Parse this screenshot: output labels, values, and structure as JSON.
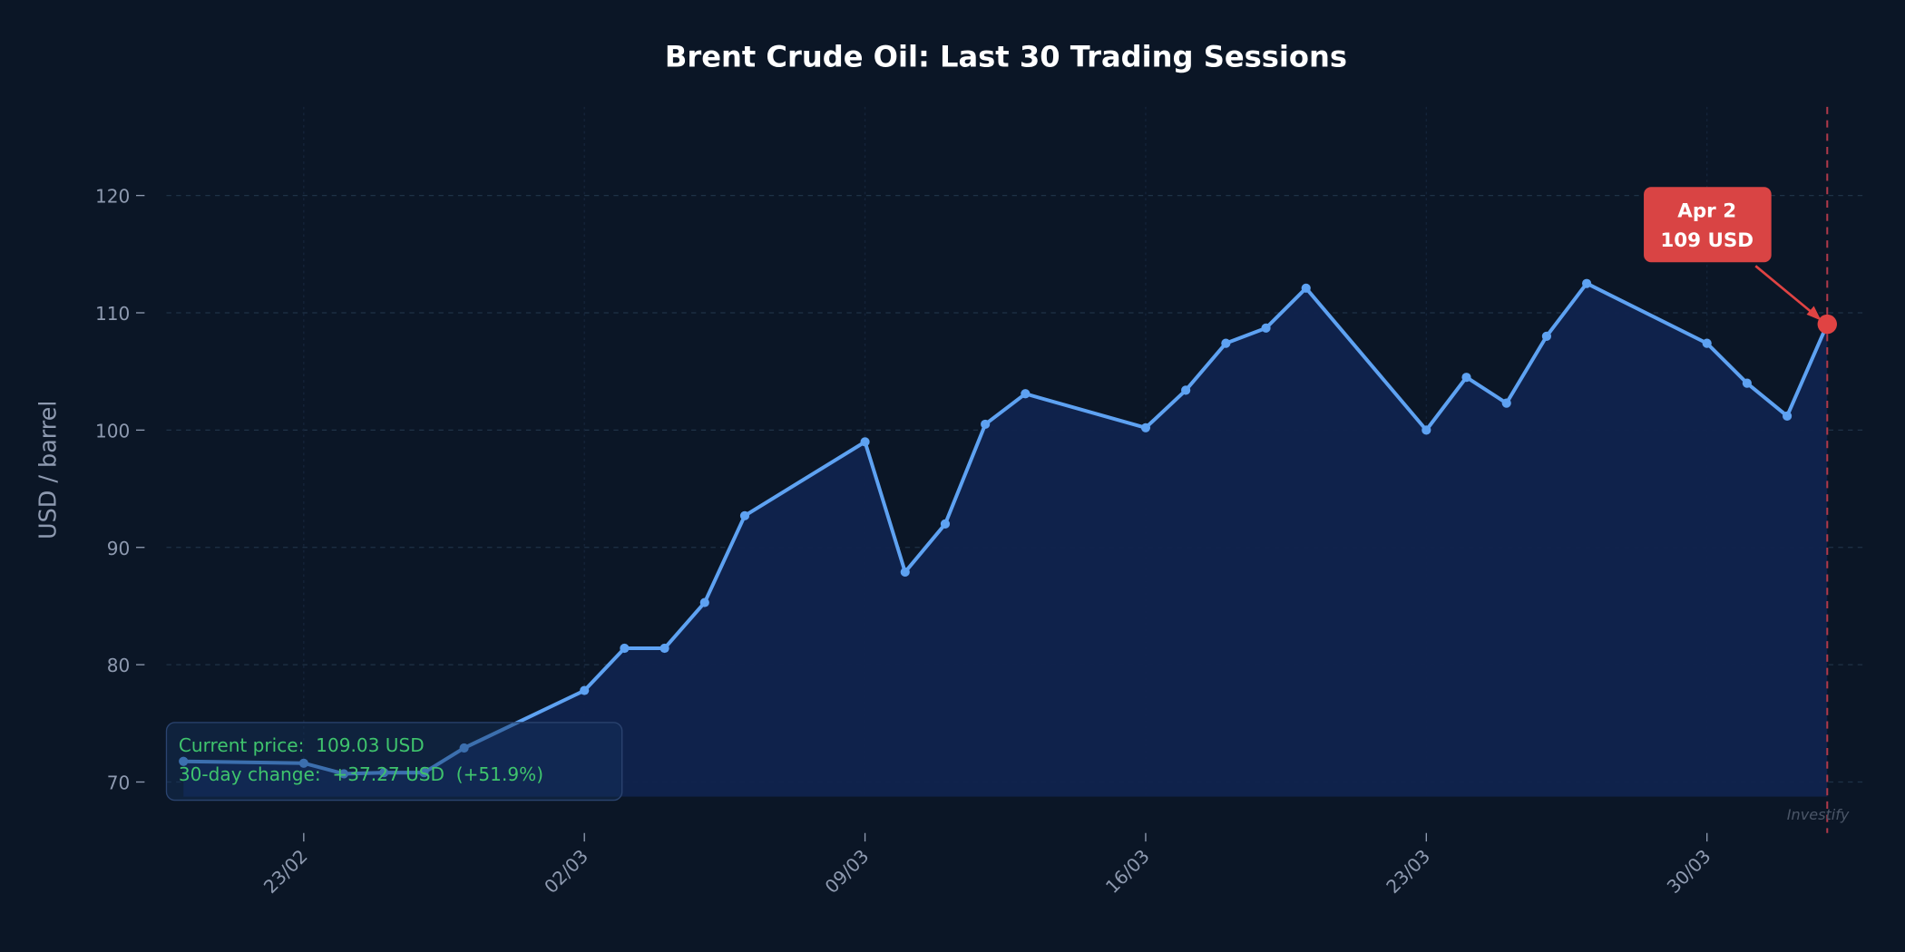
{
  "chart_data": {
    "type": "line",
    "title": "Brent Crude Oil: Last 30 Trading Sessions",
    "xlabel": "",
    "ylabel": "USD / barrel",
    "ylim": [
      65.7,
      127.6
    ],
    "yticks": [
      70,
      80,
      90,
      100,
      110,
      120
    ],
    "ytick_labels": [
      "70",
      "80",
      "90",
      "100",
      "110",
      "120"
    ],
    "xtick_labels": [
      "23/02",
      "02/03",
      "09/03",
      "16/03",
      "23/03",
      "30/03"
    ],
    "grid": true,
    "x": [
      "20/02",
      "23/02",
      "24/02",
      "25/02",
      "26/02",
      "27/02",
      "02/03",
      "03/03",
      "04/03",
      "05/03",
      "06/03",
      "09/03",
      "10/03",
      "11/03",
      "12/03",
      "13/03",
      "16/03",
      "17/03",
      "18/03",
      "19/03",
      "20/03",
      "23/03",
      "24/03",
      "25/03",
      "26/03",
      "27/03",
      "30/03",
      "31/03",
      "01/04",
      "02/04"
    ],
    "series": [
      {
        "values": [
          71.76,
          71.6,
          70.7,
          70.8,
          70.8,
          72.9,
          77.8,
          81.4,
          81.4,
          85.3,
          92.7,
          99.0,
          87.9,
          92.0,
          100.5,
          103.1,
          100.2,
          103.4,
          107.4,
          108.7,
          112.1,
          100.0,
          104.5,
          102.3,
          108.0,
          112.5,
          107.4,
          104.0,
          101.2,
          109.03
        ]
      }
    ],
    "annotation": {
      "line1": "Apr 2",
      "line2": "109 USD"
    },
    "info_box": {
      "current_price": "Current price:  109.03 USD",
      "change": "30-day change:  +37.27 USD  (+51.9%)"
    },
    "watermark": "Investify",
    "colors": {
      "background": "#0b1626",
      "line": "#5ea2f2",
      "fill": "#10234d",
      "highlight": "#e04343",
      "info_text": "#3fc46d"
    }
  }
}
